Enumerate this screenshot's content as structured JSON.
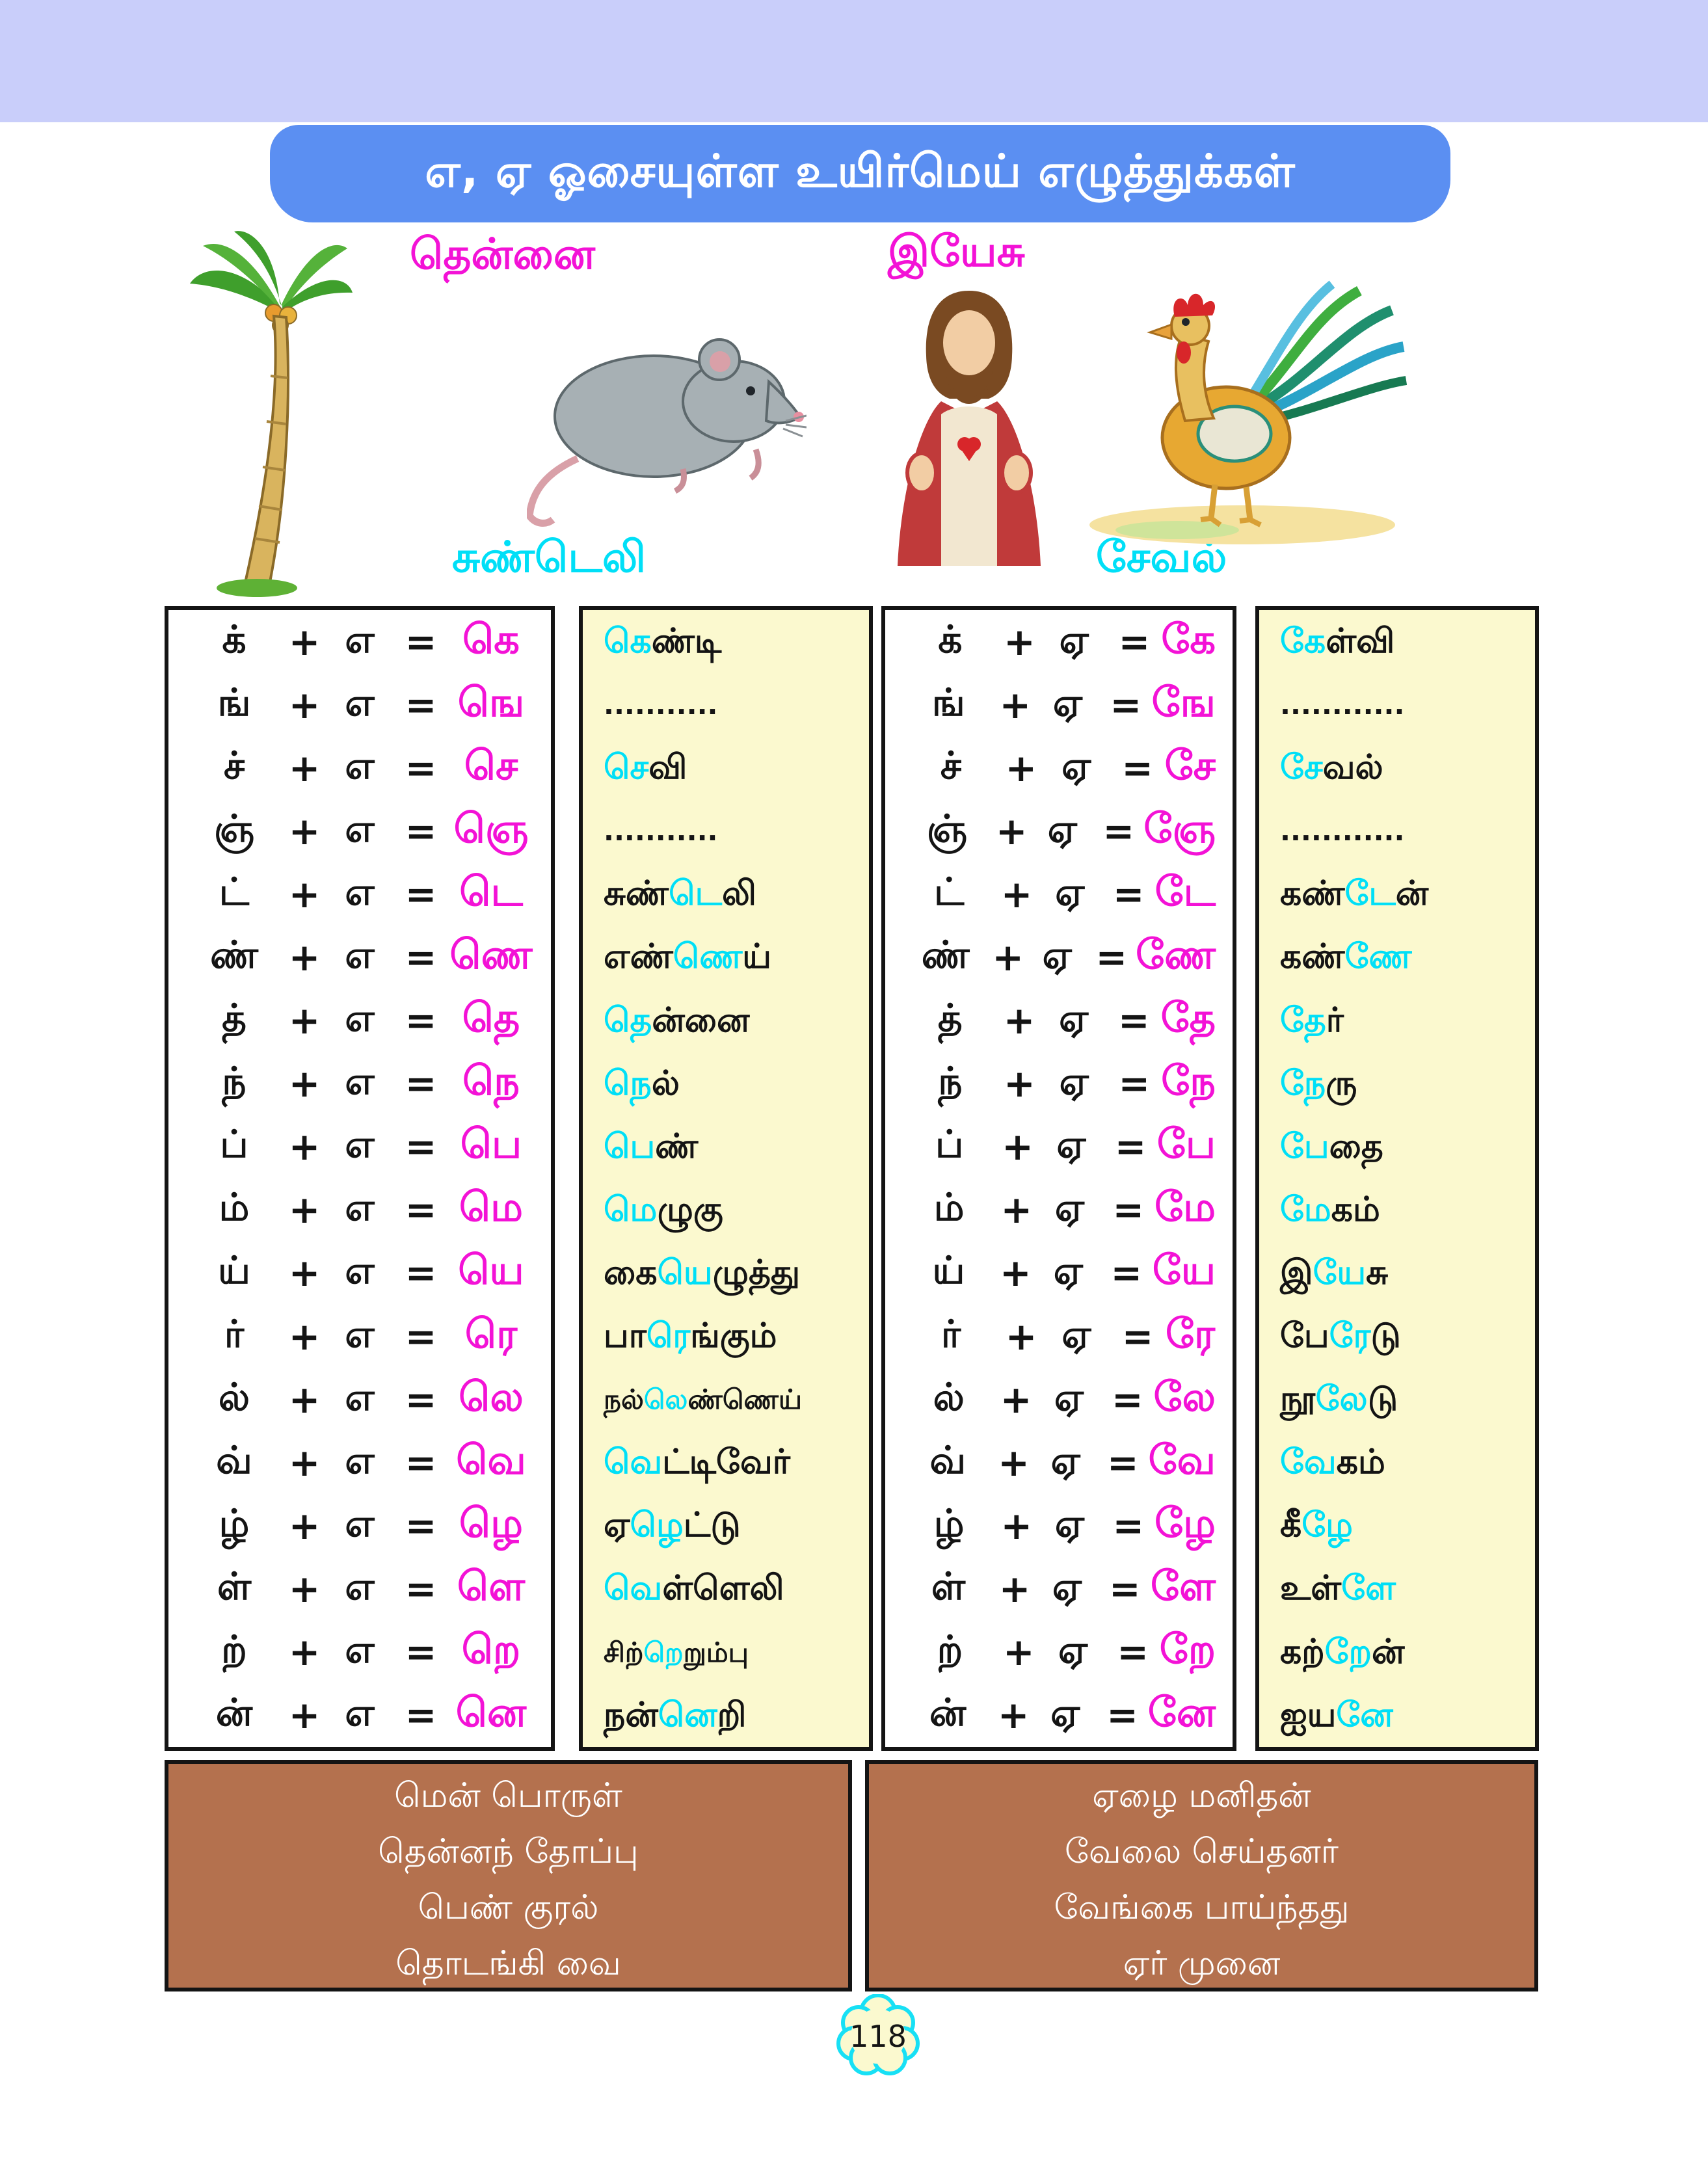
{
  "title": {
    "text": "எ, ஏ ஓசையுள்ள உயிர்மெய் எழுத்துக்கள்"
  },
  "colors": {
    "band": "#c9cefa",
    "banner": "#5b8ff2",
    "magenta": "#f312d6",
    "cyan": "#00dff7",
    "panel_yellow": "#fbf9cf",
    "note_brown": "#b4714e"
  },
  "pictures": [
    {
      "name": "coconut-tree",
      "label": "தென்னை"
    },
    {
      "name": "jesus",
      "label": "இயேசு"
    },
    {
      "name": "rat",
      "label": "சுண்டெலி"
    },
    {
      "name": "rooster",
      "label": "சேவல்"
    }
  ],
  "equation_tables": [
    {
      "container": "table-e-box",
      "vowel": "எ",
      "plus": "+",
      "equals": "=",
      "rows": [
        {
          "consonant": "க்",
          "result": "கெ"
        },
        {
          "consonant": "ங்",
          "result": "ஙெ"
        },
        {
          "consonant": "ச்",
          "result": "செ"
        },
        {
          "consonant": "ஞ்",
          "result": "ஞெ"
        },
        {
          "consonant": "ட்",
          "result": "டெ"
        },
        {
          "consonant": "ண்",
          "result": "ணெ"
        },
        {
          "consonant": "த்",
          "result": "தெ"
        },
        {
          "consonant": "ந்",
          "result": "நெ"
        },
        {
          "consonant": "ப்",
          "result": "பெ"
        },
        {
          "consonant": "ம்",
          "result": "மெ"
        },
        {
          "consonant": "ய்",
          "result": "யெ"
        },
        {
          "consonant": "ர்",
          "result": "ரெ"
        },
        {
          "consonant": "ல்",
          "result": "லெ"
        },
        {
          "consonant": "வ்",
          "result": "வெ"
        },
        {
          "consonant": "ழ்",
          "result": "ழெ"
        },
        {
          "consonant": "ள்",
          "result": "ளெ"
        },
        {
          "consonant": "ற்",
          "result": "றெ"
        },
        {
          "consonant": "ன்",
          "result": "னெ"
        }
      ]
    },
    {
      "container": "table-ee-box",
      "vowel": "ஏ",
      "plus": "+",
      "equals": "=",
      "rows": [
        {
          "consonant": "க்",
          "result": "கே"
        },
        {
          "consonant": "ங்",
          "result": "ஙே"
        },
        {
          "consonant": "ச்",
          "result": "சே"
        },
        {
          "consonant": "ஞ்",
          "result": "ஞே"
        },
        {
          "consonant": "ட்",
          "result": "டே"
        },
        {
          "consonant": "ண்",
          "result": "ணே"
        },
        {
          "consonant": "த்",
          "result": "தே"
        },
        {
          "consonant": "ந்",
          "result": "நே"
        },
        {
          "consonant": "ப்",
          "result": "பே"
        },
        {
          "consonant": "ம்",
          "result": "மே"
        },
        {
          "consonant": "ய்",
          "result": "யே"
        },
        {
          "consonant": "ர்",
          "result": "ரே"
        },
        {
          "consonant": "ல்",
          "result": "லே"
        },
        {
          "consonant": "வ்",
          "result": "வே"
        },
        {
          "consonant": "ழ்",
          "result": "ழே"
        },
        {
          "consonant": "ள்",
          "result": "ளே"
        },
        {
          "consonant": "ற்",
          "result": "றே"
        },
        {
          "consonant": "ன்",
          "result": "னே"
        }
      ]
    }
  ],
  "word_lists": [
    {
      "container": "words-e-box",
      "items": [
        {
          "pre": "",
          "hl": "கெ",
          "post": "ண்டி"
        },
        {
          "pre": "...........",
          "hl": "",
          "post": ""
        },
        {
          "pre": "",
          "hl": "செ",
          "post": "வி"
        },
        {
          "pre": "...........",
          "hl": "",
          "post": ""
        },
        {
          "pre": "சுண்",
          "hl": "டெ",
          "post": "லி"
        },
        {
          "pre": "எண்",
          "hl": "ணெ",
          "post": "ய்"
        },
        {
          "pre": "",
          "hl": "தெ",
          "post": "ன்னை"
        },
        {
          "pre": "",
          "hl": "நெ",
          "post": "ல்"
        },
        {
          "pre": "",
          "hl": "பெ",
          "post": "ண்"
        },
        {
          "pre": "",
          "hl": "மெ",
          "post": "ழுகு"
        },
        {
          "pre": "கை",
          "hl": "யெ",
          "post": "ழுத்து"
        },
        {
          "pre": "பா",
          "hl": "ரெ",
          "post": "ங்கும்"
        },
        {
          "pre": "நல்",
          "hl": "லெ",
          "post": "ண்ணெய்"
        },
        {
          "pre": "",
          "hl": "வெ",
          "post": "ட்டிவேர்"
        },
        {
          "pre": "ஏ",
          "hl": "ழெ",
          "post": "ட்டு"
        },
        {
          "pre": "",
          "hl": "வெ",
          "post": "ள்ளெலி"
        },
        {
          "pre": "சிற்",
          "hl": "றெ",
          "post": "றும்பு"
        },
        {
          "pre": "நன்",
          "hl": "னெ",
          "post": "றி"
        }
      ]
    },
    {
      "container": "words-ee-box",
      "items": [
        {
          "pre": "",
          "hl": "கே",
          "post": "ள்வி"
        },
        {
          "pre": "............",
          "hl": "",
          "post": ""
        },
        {
          "pre": "",
          "hl": "சே",
          "post": "வல்"
        },
        {
          "pre": "............",
          "hl": "",
          "post": ""
        },
        {
          "pre": "கண்",
          "hl": "டே",
          "post": "ன்"
        },
        {
          "pre": "கண்",
          "hl": "ணே",
          "post": ""
        },
        {
          "pre": "",
          "hl": "தே",
          "post": "ர்"
        },
        {
          "pre": "",
          "hl": "நே",
          "post": "ரு"
        },
        {
          "pre": "",
          "hl": "பே",
          "post": "தை"
        },
        {
          "pre": "",
          "hl": "மே",
          "post": "கம்"
        },
        {
          "pre": "இ",
          "hl": "யே",
          "post": "சு"
        },
        {
          "pre": "பே",
          "hl": "ரே",
          "post": "டு"
        },
        {
          "pre": "நூ",
          "hl": "லே",
          "post": "டு"
        },
        {
          "pre": "",
          "hl": "வே",
          "post": "கம்"
        },
        {
          "pre": "கீ",
          "hl": "ழே",
          "post": ""
        },
        {
          "pre": "உள்",
          "hl": "ளே",
          "post": ""
        },
        {
          "pre": "கற்",
          "hl": "றே",
          "post": "ன்"
        },
        {
          "pre": "ஐய",
          "hl": "னே",
          "post": ""
        }
      ]
    }
  ],
  "notes": [
    {
      "container": "notes-left-box",
      "lines": [
        "மென் பொருள்",
        "தென்னந் தோப்பு",
        "பெண் குரல்",
        "தொடங்கி வை"
      ]
    },
    {
      "container": "notes-right-box",
      "lines": [
        "ஏழை மனிதன்",
        "வேலை செய்தனர்",
        "வேங்கை பாய்ந்தது",
        "ஏர் முனை"
      ]
    }
  ],
  "page_number": "118"
}
